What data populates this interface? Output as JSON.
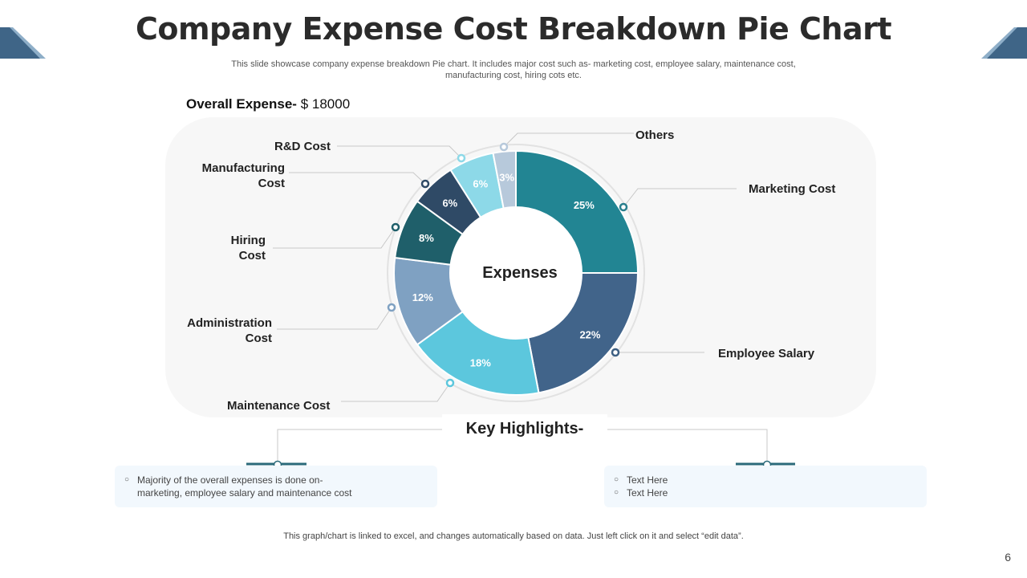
{
  "title": "Company Expense Cost Breakdown Pie Chart",
  "subtitle_line1": "This slide showcase company expense breakdown Pie chart. It includes major cost such as- marketing cost, employee salary, maintenance cost,",
  "subtitle_line2": "manufacturing cost, hiring cots etc.",
  "overall": {
    "label": "Overall Expense-",
    "value": "$ 18000"
  },
  "chart_data": {
    "type": "pie",
    "title": "Expenses",
    "categories": [
      "Marketing Cost",
      "Employee Salary",
      "Maintenance Cost",
      "Administration Cost",
      "Hiring Cost",
      "Manufacturing Cost",
      "R&D Cost",
      "Others"
    ],
    "values": [
      25,
      22,
      18,
      12,
      8,
      6,
      6,
      3
    ],
    "data_labels": [
      "25%",
      "22%",
      "18%",
      "12%",
      "8%",
      "6%",
      "6%",
      "3%"
    ],
    "colors": [
      "#228593",
      "#41648a",
      "#5cc7dd",
      "#7fa1c2",
      "#1f5f6a",
      "#2f4a66",
      "#8dd9e8",
      "#b7c9db"
    ],
    "legend_labels": {
      "marketing": "Marketing Cost",
      "employee": "Employee Salary",
      "maintenance": "Maintenance Cost",
      "admin_1": "Administration",
      "admin_2": "Cost",
      "hiring_1": "Hiring",
      "hiring_2": "Cost",
      "manufacturing_1": "Manufacturing",
      "manufacturing_2": "Cost",
      "rd": "R&D Cost",
      "others": "Others"
    }
  },
  "highlights": {
    "heading": "Key Highlights-",
    "left_items": [
      "Majority of the overall  expenses is done on-",
      "marketing,  employee salary and maintenance cost"
    ],
    "right_items": [
      "Text Here",
      "Text Here"
    ],
    "bullet": "○"
  },
  "footer": "This graph/chart is linked to excel,  and changes automatically based on data. Just left click on it and select “edit data”.",
  "page_number": "6",
  "colors": {
    "corner_dark": "#3f6587",
    "corner_light": "#8eaec8",
    "connector": "#c8c8c8",
    "marker_dark": "#2f5f7a",
    "marker_light": "#7fb3cc"
  }
}
